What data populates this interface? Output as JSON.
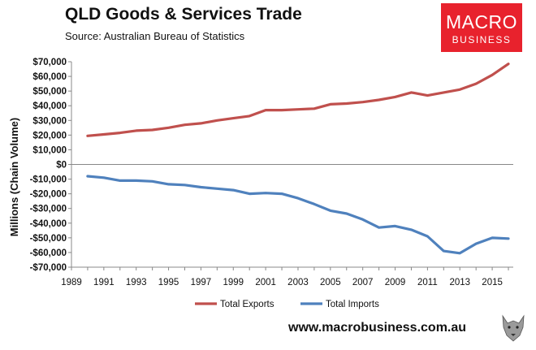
{
  "header": {
    "title": "QLD Goods & Services Trade",
    "subtitle": "Source:  Australian Bureau of Statistics"
  },
  "logo": {
    "line1": "MACRO",
    "line2": "BUSINESS",
    "color": "#e8222d"
  },
  "footer": {
    "url": "www.macrobusiness.com.au"
  },
  "chart_data": {
    "type": "line",
    "title": "QLD Goods & Services Trade",
    "xlabel": "",
    "ylabel": "Millions (Chain Volume)",
    "xlim": [
      1989,
      2016.3
    ],
    "ylim": [
      -70000,
      70000
    ],
    "xticks": [
      "1989",
      "1991",
      "1993",
      "1995",
      "1997",
      "1999",
      "2001",
      "2003",
      "2005",
      "2007",
      "2009",
      "2011",
      "2013",
      "2015"
    ],
    "yticks": [
      "$70,000",
      "$60,000",
      "$50,000",
      "$40,000",
      "$30,000",
      "$20,000",
      "$10,000",
      "$0",
      "-$10,000",
      "-$20,000",
      "-$30,000",
      "-$40,000",
      "-$50,000",
      "-$60,000",
      "-$70,000"
    ],
    "grid": false,
    "legend_position": "bottom",
    "x": [
      1990,
      1991,
      1992,
      1993,
      1994,
      1995,
      1996,
      1997,
      1998,
      1999,
      2000,
      2001,
      2002,
      2003,
      2004,
      2005,
      2006,
      2007,
      2008,
      2009,
      2010,
      2011,
      2012,
      2013,
      2014,
      2015,
      2016
    ],
    "series": [
      {
        "name": "Total Exports",
        "color": "#c0504d",
        "values": [
          19500,
          20500,
          21500,
          23000,
          23500,
          25000,
          27000,
          28000,
          30000,
          31500,
          33000,
          37000,
          37000,
          37500,
          38000,
          41000,
          41500,
          42500,
          44000,
          46000,
          49000,
          47000,
          49000,
          51000,
          55000,
          61000,
          68500
        ]
      },
      {
        "name": "Total Imports",
        "color": "#4f81bd",
        "values": [
          -8000,
          -9000,
          -11000,
          -11000,
          -11500,
          -13500,
          -14000,
          -15500,
          -16500,
          -17500,
          -20000,
          -19500,
          -20000,
          -23000,
          -27000,
          -31500,
          -33500,
          -37500,
          -43000,
          -42000,
          -44500,
          -49000,
          -59000,
          -60500,
          -54000,
          -50000,
          -50500
        ]
      }
    ]
  }
}
